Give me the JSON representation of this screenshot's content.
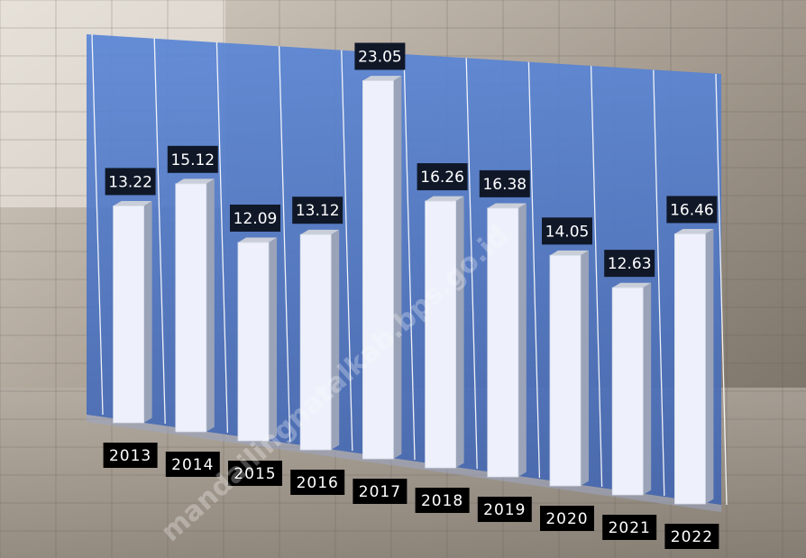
{
  "watermark": "mandailingnatalkab.bps.go.id",
  "colors": {
    "panel": "#4f78c8",
    "bar_front": "#eef1fb",
    "bar_side": "#9aa3b8",
    "bar_top": "#c9ced8",
    "label_bg": "#101828"
  },
  "chart_data": {
    "type": "bar",
    "categories": [
      "2013",
      "2014",
      "2015",
      "2016",
      "2017",
      "2018",
      "2019",
      "2020",
      "2021",
      "2022"
    ],
    "values": [
      13.22,
      15.12,
      12.09,
      13.12,
      23.05,
      16.26,
      16.38,
      14.05,
      12.63,
      16.46
    ],
    "value_labels": [
      "13.22",
      "15.12",
      "12.09",
      "13.12",
      "23.05",
      "16.26",
      "16.38",
      "14.05",
      "12.63",
      "16.46"
    ],
    "title": "",
    "xlabel": "",
    "ylabel": "",
    "ylim": [
      0,
      25
    ],
    "grid": false,
    "legend": "none"
  }
}
